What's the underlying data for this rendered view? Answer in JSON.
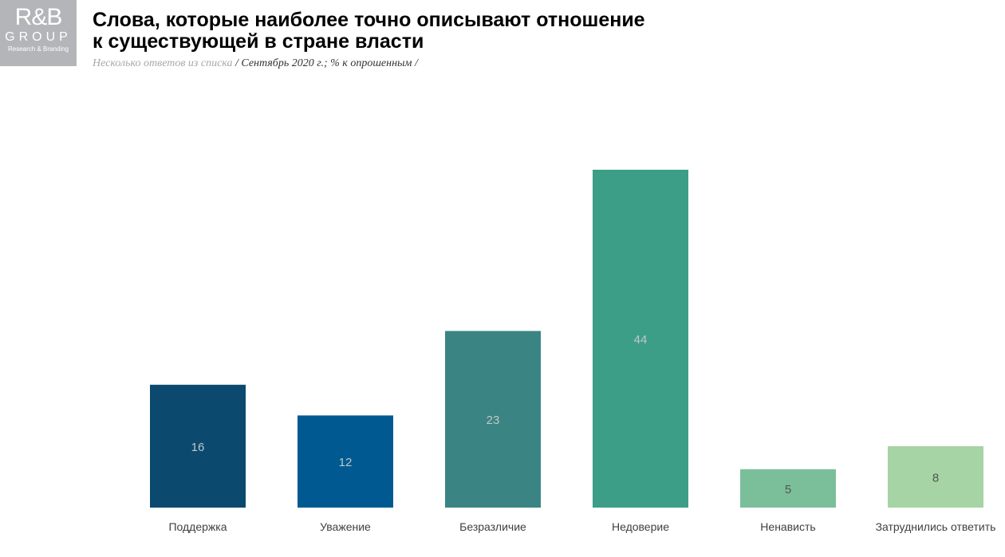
{
  "logo": {
    "line1": "R&B",
    "line2": "GROUP",
    "line3": "Research & Branding"
  },
  "title_line1": "Слова, которые наиболее точно описывают отношение",
  "title_line2": "к существующей в стране власти",
  "subtitle": {
    "part1": "Несколько ответов из списка",
    "part2": " / Сентябрь 2020 г.; % к опрошенным  /"
  },
  "chart_data": {
    "type": "bar",
    "categories": [
      "Поддержка",
      "Уважение",
      "Безразличие",
      "Недоверие",
      "Ненависть",
      "Затруднились ответить"
    ],
    "values": [
      16,
      12,
      23,
      44,
      5,
      8
    ],
    "colors": [
      "#0b4a6e",
      "#005a91",
      "#3b8484",
      "#3c9e87",
      "#7bbf9a",
      "#a6d4a4"
    ],
    "label_colors": [
      "#bfc6cc",
      "#bfc6cc",
      "#c0c8c8",
      "#c0c8c8",
      "#555555",
      "#555555"
    ],
    "ylim": [
      0,
      44
    ],
    "grid": false
  }
}
